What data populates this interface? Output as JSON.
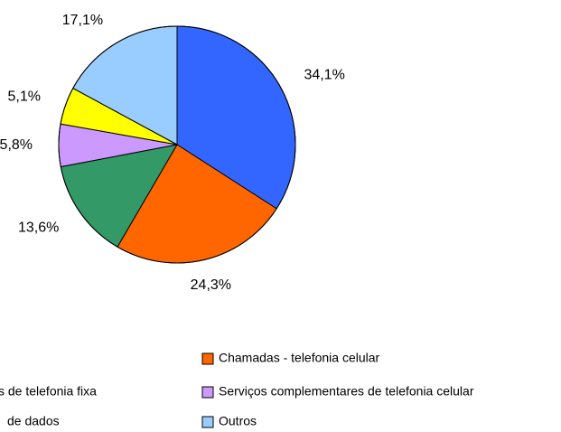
{
  "chart_data": {
    "type": "pie",
    "categories": [
      null,
      "Chamadas - telefonia celular",
      "s de telefonia fixa",
      "Serviços complementares de telefonia celular",
      "de  dados",
      "Outros"
    ],
    "values": [
      34.1,
      24.3,
      13.6,
      5.8,
      5.1,
      17.1
    ],
    "value_labels": [
      "34,1%",
      "24,3%",
      "13,6%",
      "5,8%",
      "5,1%",
      "17,1%"
    ],
    "colors": [
      "#3366ff",
      "#ff6600",
      "#339966",
      "#cc99ff",
      "#ffff00",
      "#99ccff"
    ]
  }
}
